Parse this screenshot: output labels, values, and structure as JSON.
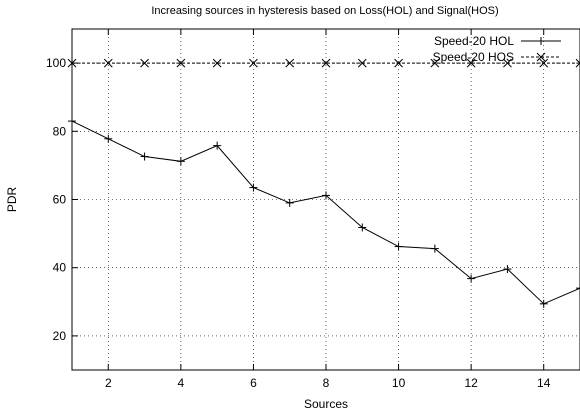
{
  "chart_data": {
    "type": "line",
    "title": "Increasing sources in hysteresis based on Loss(HOL) and Signal(HOS)",
    "xlabel": "Sources",
    "ylabel": "PDR",
    "xlim": [
      1,
      15
    ],
    "ylim": [
      10,
      110
    ],
    "x_ticks": [
      2,
      4,
      6,
      8,
      10,
      12,
      14
    ],
    "y_ticks": [
      20,
      40,
      60,
      80,
      100
    ],
    "grid": true,
    "legend_position": "top-right",
    "series": [
      {
        "name": "Speed-20 HOL",
        "marker": "plus",
        "line_style": "solid",
        "color": "#000000",
        "x": [
          1,
          2,
          3,
          4,
          5,
          6,
          7,
          8,
          9,
          10,
          11,
          12,
          13,
          14,
          15
        ],
        "y": [
          83,
          77.8,
          72.6,
          71.2,
          75.8,
          63.5,
          59,
          61.2,
          51.8,
          46.2,
          45.6,
          36.8,
          39.6,
          29.4,
          34
        ]
      },
      {
        "name": "Speed-20 HOS",
        "marker": "x",
        "line_style": "dashed",
        "color": "#000000",
        "x": [
          1,
          2,
          3,
          4,
          5,
          6,
          7,
          8,
          9,
          10,
          11,
          12,
          13,
          14,
          15
        ],
        "y": [
          100,
          100,
          100,
          100,
          100,
          100,
          100,
          100,
          100,
          100,
          100,
          100,
          100,
          100,
          100
        ]
      }
    ]
  }
}
